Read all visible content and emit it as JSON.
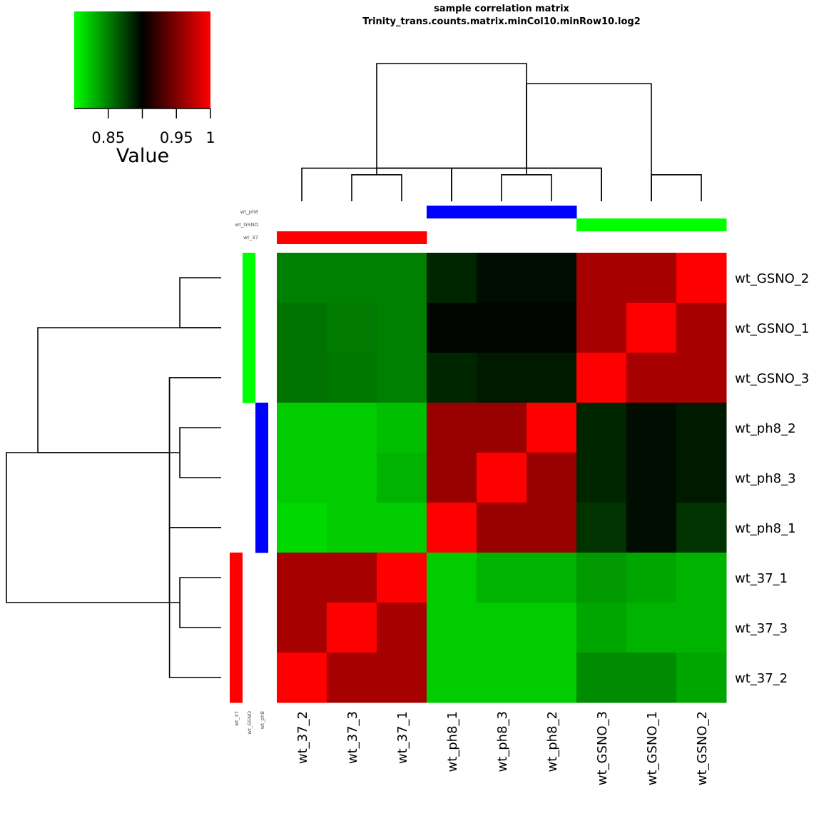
{
  "chart_data": {
    "type": "heatmap",
    "title": "sample correlation matrix",
    "subtitle": "Trinity_trans.counts.matrix.minCol10.minRow10.log2",
    "columns": [
      "wt_37_2",
      "wt_37_3",
      "wt_37_1",
      "wt_ph8_1",
      "wt_ph8_3",
      "wt_ph8_2",
      "wt_GSNO_3",
      "wt_GSNO_1",
      "wt_GSNO_2"
    ],
    "rows": [
      "wt_GSNO_2",
      "wt_GSNO_1",
      "wt_GSNO_3",
      "wt_ph8_2",
      "wt_ph8_3",
      "wt_ph8_1",
      "wt_37_1",
      "wt_37_3",
      "wt_37_2"
    ],
    "values": [
      [
        0.85,
        0.85,
        0.85,
        0.885,
        0.895,
        0.895,
        0.965,
        0.965,
        1.0
      ],
      [
        0.855,
        0.852,
        0.85,
        0.898,
        0.898,
        0.898,
        0.965,
        1.0,
        0.965
      ],
      [
        0.855,
        0.853,
        0.85,
        0.885,
        0.89,
        0.89,
        1.0,
        0.965,
        0.965
      ],
      [
        0.82,
        0.82,
        0.825,
        0.96,
        0.96,
        1.0,
        0.885,
        0.895,
        0.89
      ],
      [
        0.82,
        0.82,
        0.83,
        0.96,
        1.0,
        0.96,
        0.885,
        0.895,
        0.89
      ],
      [
        0.815,
        0.82,
        0.82,
        1.0,
        0.96,
        0.96,
        0.88,
        0.895,
        0.88
      ],
      [
        0.965,
        0.965,
        1.0,
        0.82,
        0.83,
        0.83,
        0.84,
        0.835,
        0.83
      ],
      [
        0.965,
        1.0,
        0.965,
        0.82,
        0.82,
        0.82,
        0.835,
        0.83,
        0.83
      ],
      [
        1.0,
        0.965,
        0.965,
        0.82,
        0.82,
        0.82,
        0.845,
        0.845,
        0.835
      ]
    ],
    "color_scale": {
      "low": "#00ff00",
      "mid": "#000000",
      "high": "#ff0000",
      "min": 0.8,
      "mid_value": 0.9,
      "max": 1.0
    },
    "key": {
      "title": "Value",
      "ticks": [
        0.85,
        0.95,
        1
      ],
      "tick_labels": [
        "0.85",
        "0.95",
        "1"
      ]
    },
    "annotation_tracks": [
      {
        "name": "wt_ph8",
        "color": "#0000ff"
      },
      {
        "name": "wt_GSNO",
        "color": "#00ff00"
      },
      {
        "name": "wt_37",
        "color": "#ff0000"
      }
    ],
    "col_groups": [
      "wt_37",
      "wt_37",
      "wt_37",
      "wt_ph8",
      "wt_ph8",
      "wt_ph8",
      "wt_GSNO",
      "wt_GSNO",
      "wt_GSNO"
    ],
    "row_groups": [
      "wt_GSNO",
      "wt_GSNO",
      "wt_GSNO",
      "wt_ph8",
      "wt_ph8",
      "wt_ph8",
      "wt_37",
      "wt_37",
      "wt_37"
    ],
    "dendrogram": {
      "merges": [
        [
          1,
          2,
          0.02
        ],
        [
          0,
          3,
          0.03
        ],
        [
          4,
          5,
          0.02
        ],
        [
          3,
          6,
          0.03
        ],
        [
          7,
          8,
          0.02
        ],
        [
          6,
          9,
          0.03
        ],
        [
          7,
          11,
          0.3
        ],
        [
          10,
          12,
          0.4
        ]
      ]
    }
  }
}
